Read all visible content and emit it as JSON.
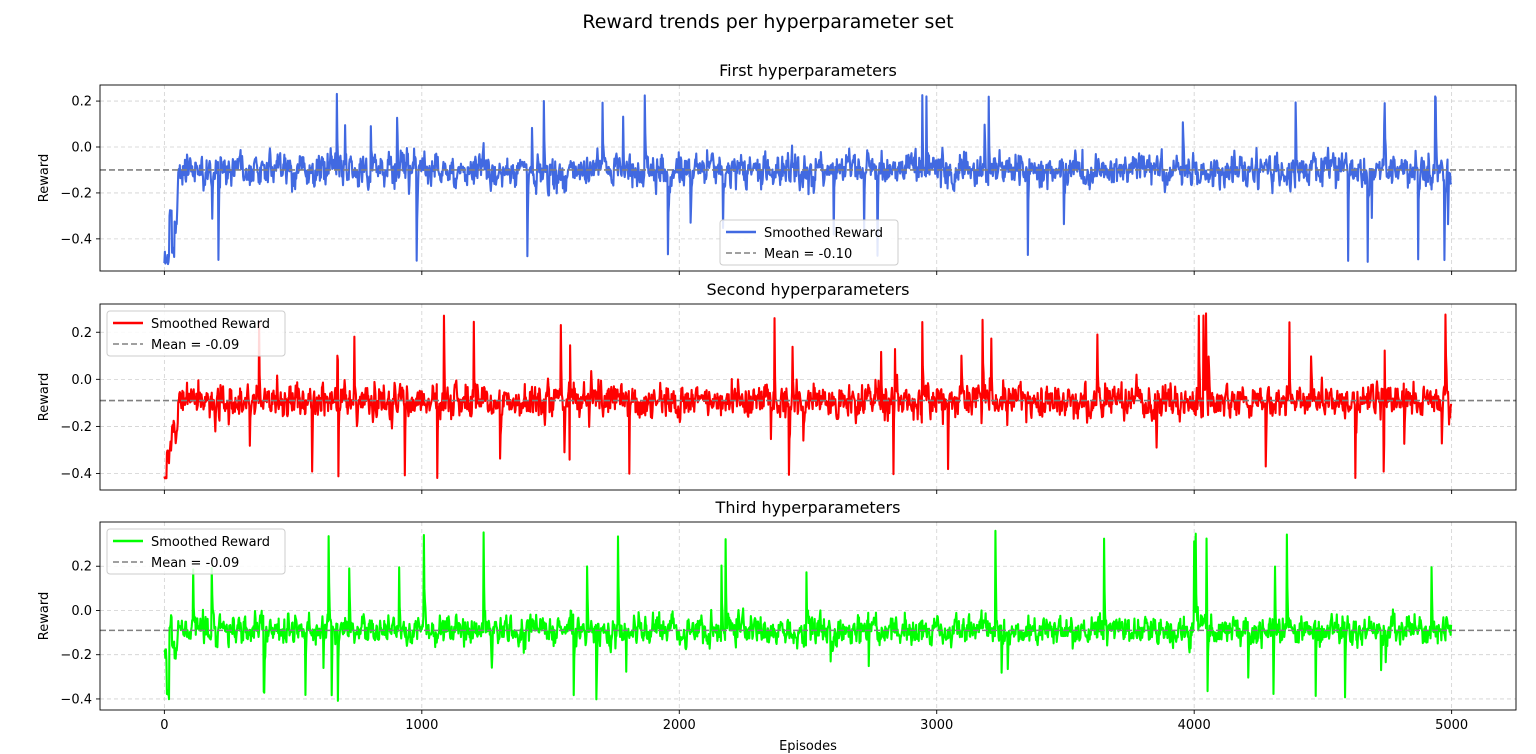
{
  "figure": {
    "title": "Reward trends per hyperparameter set"
  },
  "chart_data": [
    {
      "type": "line",
      "title": "First hyperparameters",
      "xlabel": "",
      "ylabel": "Reward",
      "xlim": [
        -250,
        5250
      ],
      "ylim": [
        -0.54,
        0.27
      ],
      "xticks": [
        0,
        1000,
        2000,
        3000,
        4000,
        5000
      ],
      "yticks": [
        -0.4,
        -0.2,
        0.0,
        0.2
      ],
      "ytick_labels": [
        "−0.4",
        "−0.2",
        "0.0",
        "0.2"
      ],
      "grid": true,
      "legend": {
        "placement": "lower-center",
        "entries": [
          "Smoothed Reward",
          "Mean = -0.10"
        ]
      },
      "series": [
        {
          "name": "Smoothed Reward",
          "color": "#4169e1",
          "n_points": 5000,
          "start_values": [
            -0.48,
            -0.5,
            -0.3,
            -0.45,
            -0.35
          ],
          "min": -0.51,
          "max": 0.24,
          "mean": -0.1,
          "noise": 0.12
        }
      ],
      "mean_line": {
        "label": "Mean = -0.10",
        "value": -0.1,
        "color": "#808080"
      }
    },
    {
      "type": "line",
      "title": "Second hyperparameters",
      "xlabel": "",
      "ylabel": "Reward",
      "xlim": [
        -250,
        5250
      ],
      "ylim": [
        -0.47,
        0.32
      ],
      "xticks": [
        0,
        1000,
        2000,
        3000,
        4000,
        5000
      ],
      "yticks": [
        -0.4,
        -0.2,
        0.0,
        0.2
      ],
      "ytick_labels": [
        "−0.4",
        "−0.2",
        "0.0",
        "0.2"
      ],
      "grid": true,
      "legend": {
        "placement": "top-left",
        "entries": [
          "Smoothed Reward",
          "Mean = -0.09"
        ]
      },
      "series": [
        {
          "name": "Smoothed Reward",
          "color": "#ff0000",
          "n_points": 5000,
          "start_values": [
            -0.42,
            -0.33,
            -0.28,
            -0.2,
            -0.25
          ],
          "min": -0.42,
          "max": 0.28,
          "mean": -0.09,
          "noise": 0.12
        }
      ],
      "mean_line": {
        "label": "Mean = -0.09",
        "value": -0.09,
        "color": "#808080"
      }
    },
    {
      "type": "line",
      "title": "Third hyperparameters",
      "xlabel": "Episodes",
      "ylabel": "Reward",
      "xlim": [
        -250,
        5250
      ],
      "ylim": [
        -0.45,
        0.4
      ],
      "xticks": [
        0,
        1000,
        2000,
        3000,
        4000,
        5000
      ],
      "yticks": [
        -0.4,
        -0.2,
        0.0,
        0.2
      ],
      "ytick_labels": [
        "−0.4",
        "−0.2",
        "0.0",
        "0.2"
      ],
      "grid": true,
      "legend": {
        "placement": "top-left",
        "entries": [
          "Smoothed Reward",
          "Mean = -0.09"
        ]
      },
      "series": [
        {
          "name": "Smoothed Reward",
          "color": "#00ff00",
          "n_points": 5000,
          "start_values": [
            -0.2,
            -0.38,
            -0.05,
            -0.15,
            -0.2
          ],
          "min": -0.41,
          "max": 0.36,
          "mean": -0.09,
          "noise": 0.11
        }
      ],
      "mean_line": {
        "label": "Mean = -0.09",
        "value": -0.09,
        "color": "#808080"
      }
    }
  ]
}
